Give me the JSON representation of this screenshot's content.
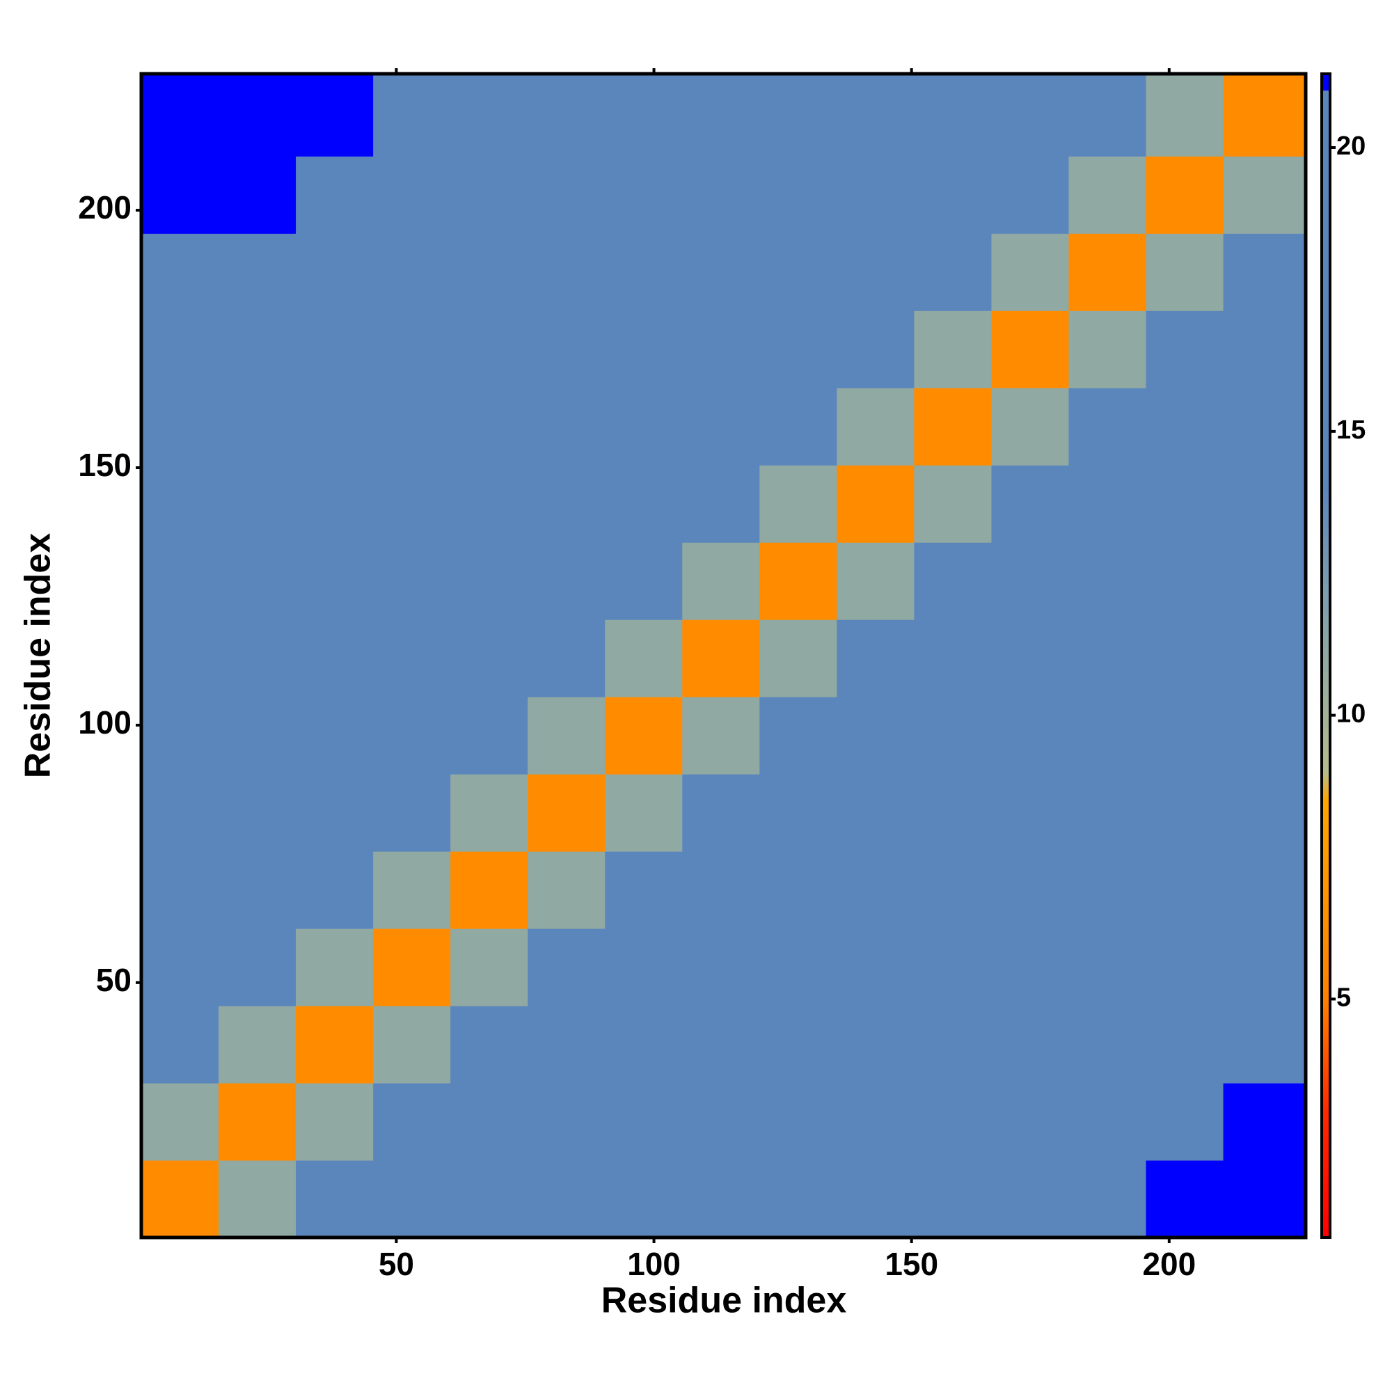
{
  "chart_data": {
    "type": "heatmap",
    "x_label": "Residue index",
    "y_label": "Residue index",
    "xlim": [
      0.5,
      226.5
    ],
    "ylim": [
      0.5,
      226.5
    ],
    "xticks": [
      50,
      100,
      150,
      200
    ],
    "yticks": [
      50,
      100,
      150,
      200
    ],
    "xbins": [
      0.5,
      15.5,
      30.5,
      45.5,
      60.5,
      75.5,
      90.5,
      105.5,
      120.5,
      135.5,
      150.5,
      165.5,
      180.5,
      195.5,
      210.5,
      226.5
    ],
    "ybins": [
      0.5,
      15.5,
      30.5,
      45.5,
      60.5,
      75.5,
      90.5,
      105.5,
      120.5,
      135.5,
      150.5,
      165.5,
      180.5,
      195.5,
      210.5,
      226.5
    ],
    "values": [
      [
        6,
        11,
        14,
        16,
        18,
        19,
        20,
        20,
        20,
        20,
        20,
        20,
        20,
        21.2,
        21.5
      ],
      [
        11,
        6,
        11,
        14,
        16,
        18,
        19,
        20,
        20,
        20,
        20,
        20,
        20,
        20,
        21.3
      ],
      [
        14,
        11,
        6,
        11,
        14,
        16,
        18,
        19,
        20,
        20,
        20,
        20,
        20,
        20,
        20
      ],
      [
        16,
        14,
        11,
        6,
        11,
        14,
        16,
        18,
        19,
        20,
        20,
        20,
        20,
        20,
        20
      ],
      [
        18,
        16,
        14,
        11,
        6,
        11,
        14,
        16,
        18,
        19,
        20,
        20,
        20,
        20,
        20
      ],
      [
        19,
        18,
        16,
        14,
        11,
        6,
        11,
        14,
        16,
        18,
        19,
        20,
        20,
        20,
        20
      ],
      [
        20,
        19,
        18,
        16,
        14,
        11,
        6,
        11,
        14,
        16,
        18,
        19,
        20,
        21,
        20
      ],
      [
        20,
        20,
        19,
        18,
        16,
        14,
        11,
        6,
        11,
        14,
        16,
        18,
        19,
        20,
        20
      ],
      [
        20,
        20,
        20,
        19,
        18,
        16,
        14,
        11,
        6,
        11,
        14,
        16,
        18,
        19,
        20
      ],
      [
        20,
        20,
        20,
        20,
        19,
        18,
        16,
        14,
        11,
        6,
        11,
        14,
        16,
        18,
        19
      ],
      [
        20,
        20,
        20,
        20,
        20,
        19,
        18,
        16,
        14,
        11,
        6,
        11,
        14,
        16,
        18
      ],
      [
        20,
        20,
        20,
        20,
        20,
        20,
        19,
        18,
        16,
        14,
        11,
        6,
        11,
        14,
        16
      ],
      [
        20,
        20,
        20,
        20,
        20,
        20,
        20,
        19,
        18,
        16,
        14,
        11,
        6,
        11,
        14
      ],
      [
        21.2,
        21.2,
        20,
        20,
        20,
        20,
        21,
        20,
        19,
        18,
        16,
        14,
        11,
        6,
        11
      ],
      [
        21.5,
        21.5,
        21.5,
        20,
        20,
        20,
        20,
        20,
        20,
        19,
        18,
        16,
        14,
        11,
        6
      ]
    ],
    "clim": [
      0.8,
      21.3
    ],
    "colorbar_ticks": [
      5,
      10,
      15,
      20
    ],
    "colorscale": [
      [
        0.8,
        "#ff0000"
      ],
      [
        3,
        "#ff2800"
      ],
      [
        5,
        "#ff8000"
      ],
      [
        8.5,
        "#ffa500"
      ],
      [
        9,
        "#b4bc8c"
      ],
      [
        12,
        "#7f9fae"
      ],
      [
        14,
        "#5b86bb"
      ],
      [
        21,
        "#5b86bb"
      ],
      [
        21.01,
        "#0000ff"
      ]
    ]
  }
}
